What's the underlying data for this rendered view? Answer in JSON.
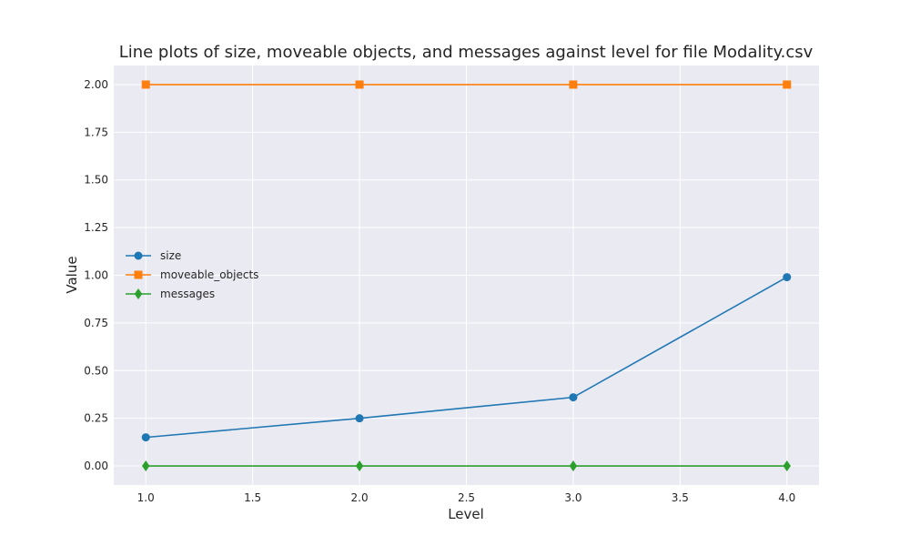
{
  "chart_data": {
    "type": "line",
    "title": "Line plots of size, moveable objects, and messages against level for file Modality.csv",
    "xlabel": "Level",
    "ylabel": "Value",
    "xlim": [
      0.85,
      4.15
    ],
    "ylim": [
      -0.1,
      2.1
    ],
    "xticks": [
      1.0,
      1.5,
      2.0,
      2.5,
      3.0,
      3.5,
      4.0
    ],
    "xtick_labels": [
      "1.0",
      "1.5",
      "2.0",
      "2.5",
      "3.0",
      "3.5",
      "4.0"
    ],
    "yticks": [
      0.0,
      0.25,
      0.5,
      0.75,
      1.0,
      1.25,
      1.5,
      1.75,
      2.0
    ],
    "ytick_labels": [
      "0.00",
      "0.25",
      "0.50",
      "0.75",
      "1.00",
      "1.25",
      "1.50",
      "1.75",
      "2.00"
    ],
    "grid": true,
    "legend_position": "center-left",
    "x": [
      1.0,
      2.0,
      3.0,
      4.0
    ],
    "series": [
      {
        "name": "size",
        "values": [
          0.15,
          0.25,
          0.36,
          0.99
        ],
        "color": "#1f77b4",
        "marker": "circle"
      },
      {
        "name": "moveable_objects",
        "values": [
          2.0,
          2.0,
          2.0,
          2.0
        ],
        "color": "#ff7f0e",
        "marker": "square"
      },
      {
        "name": "messages",
        "values": [
          0.0,
          0.0,
          0.0,
          0.0
        ],
        "color": "#2ca02c",
        "marker": "diamond"
      }
    ],
    "plot_background": "#eaeaf2",
    "grid_color": "#ffffff"
  }
}
